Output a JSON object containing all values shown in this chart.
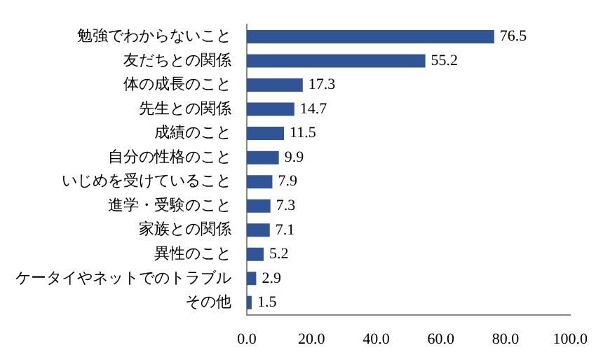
{
  "chart_data": {
    "type": "bar",
    "orientation": "horizontal",
    "categories": [
      "勉強でわからないこと",
      "友だちとの関係",
      "体の成長のこと",
      "先生との関係",
      "成績のこと",
      "自分の性格のこと",
      "いじめを受けていること",
      "進学・受験のこと",
      "家族との関係",
      "異性のこと",
      "ケータイやネットでのトラブル",
      "その他"
    ],
    "values": [
      76.5,
      55.2,
      17.3,
      14.7,
      11.5,
      9.9,
      7.9,
      7.3,
      7.1,
      5.2,
      2.9,
      1.5
    ],
    "color": "#2f5597",
    "xlim": [
      0,
      100
    ],
    "xticks": [
      {
        "value": 0,
        "label": "0.0"
      },
      {
        "value": 20,
        "label": "20.0"
      },
      {
        "value": 40,
        "label": "40.0"
      },
      {
        "value": 60,
        "label": "60.0"
      },
      {
        "value": 80,
        "label": "80.0"
      },
      {
        "value": 100,
        "label": "100.0"
      }
    ],
    "data_labels": true,
    "grid": false,
    "legend": false
  }
}
